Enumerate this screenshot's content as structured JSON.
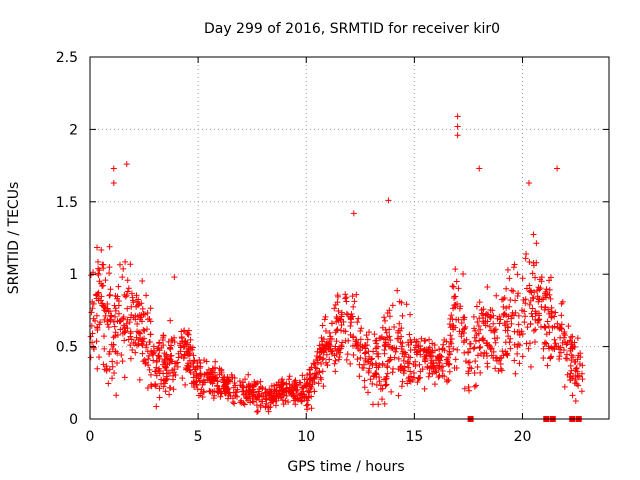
{
  "chart_data": {
    "type": "scatter",
    "title": "Day 299 of 2016, SRMTID for receiver kir0",
    "xlabel": "GPS time / hours",
    "ylabel": "SRMTID / TECUs",
    "xlim": [
      0,
      24
    ],
    "ylim": [
      0,
      2.5
    ],
    "xticks": [
      0,
      5,
      10,
      15,
      20
    ],
    "yticks": [
      0,
      0.5,
      1,
      1.5,
      2,
      2.5
    ],
    "xtick_labels": [
      "0",
      "5",
      "10",
      "15",
      "20"
    ],
    "ytick_labels": [
      "0",
      "0.5",
      "1",
      "1.5",
      "2",
      "2.5"
    ],
    "grid": true,
    "color": "#ff0000",
    "series": [
      {
        "name": "SRMTID",
        "marker": "plus",
        "envelope": {
          "x": [
            0,
            0.5,
            1.0,
            1.5,
            2.0,
            2.5,
            3.0,
            3.5,
            4.0,
            4.5,
            5.0,
            6.0,
            7.0,
            8.0,
            9.0,
            10.0,
            10.5,
            11.0,
            11.5,
            12.0,
            12.5,
            13.0,
            13.5,
            14.0,
            14.5,
            15.0,
            15.5,
            16.0,
            16.5,
            17.0,
            17.5,
            18.0,
            18.5,
            19.0,
            19.5,
            20.0,
            20.5,
            21.0,
            21.5,
            22.0,
            22.5,
            22.8
          ],
          "mean": [
            0.7,
            0.75,
            0.6,
            0.7,
            0.65,
            0.6,
            0.35,
            0.4,
            0.45,
            0.45,
            0.3,
            0.25,
            0.2,
            0.15,
            0.2,
            0.2,
            0.35,
            0.5,
            0.6,
            0.7,
            0.5,
            0.35,
            0.45,
            0.55,
            0.5,
            0.45,
            0.45,
            0.35,
            0.4,
            0.8,
            0.35,
            0.55,
            0.55,
            0.6,
            0.65,
            0.8,
            0.85,
            0.7,
            0.6,
            0.5,
            0.35,
            0.35
          ],
          "spread": [
            0.4,
            0.45,
            0.45,
            0.45,
            0.4,
            0.4,
            0.25,
            0.25,
            0.25,
            0.2,
            0.15,
            0.12,
            0.1,
            0.1,
            0.1,
            0.12,
            0.2,
            0.25,
            0.25,
            0.35,
            0.25,
            0.2,
            0.3,
            0.35,
            0.3,
            0.25,
            0.2,
            0.15,
            0.2,
            0.45,
            0.25,
            0.3,
            0.3,
            0.35,
            0.4,
            0.4,
            0.4,
            0.35,
            0.3,
            0.3,
            0.2,
            0.15
          ]
        },
        "notable_points": [
          {
            "x": 17.0,
            "y": 2.09
          },
          {
            "x": 17.0,
            "y": 2.02
          },
          {
            "x": 17.0,
            "y": 1.96
          },
          {
            "x": 1.1,
            "y": 1.73
          },
          {
            "x": 1.7,
            "y": 1.76
          },
          {
            "x": 1.1,
            "y": 1.63
          },
          {
            "x": 18.0,
            "y": 1.73
          },
          {
            "x": 20.3,
            "y": 1.63
          },
          {
            "x": 21.6,
            "y": 1.73
          },
          {
            "x": 13.8,
            "y": 1.51
          },
          {
            "x": 12.2,
            "y": 1.42
          },
          {
            "x": 3.9,
            "y": 0.98
          }
        ],
        "zero_markers_x": [
          17.6,
          21.1,
          21.4,
          22.3,
          22.6
        ]
      }
    ]
  }
}
